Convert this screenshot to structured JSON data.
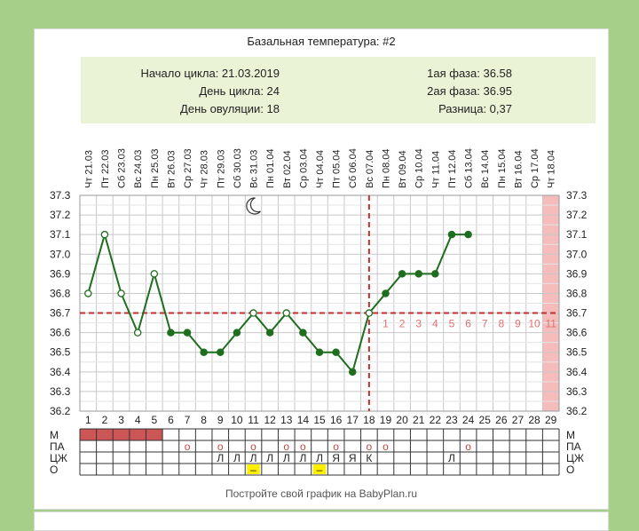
{
  "title": "Базальная температура: #2",
  "summary": {
    "cycle_start_label": "Начало цикла: 21.03.2019",
    "cycle_day_label": "День цикла: 24",
    "ovulation_day_label": "День овуляции: 18",
    "phase1_label": "1ая фаза: 36.58",
    "phase2_label": "2ая фаза: 36.95",
    "difference_label": "Разница: 0,37"
  },
  "footer": "Постройте свой график на BabyPlan.ru",
  "chart_data": {
    "type": "line",
    "title": "Базальная температура: #2",
    "ylim": [
      36.2,
      37.3
    ],
    "yticks": [
      "37.3",
      "37.2",
      "37.1",
      "37.0",
      "36.9",
      "36.8",
      "36.7",
      "36.6",
      "36.5",
      "36.4",
      "36.3",
      "36.2"
    ],
    "days": [
      1,
      2,
      3,
      4,
      5,
      6,
      7,
      8,
      9,
      10,
      11,
      12,
      13,
      14,
      15,
      16,
      17,
      18,
      19,
      20,
      21,
      22,
      23,
      24,
      25,
      26,
      27,
      28,
      29
    ],
    "dates": [
      "Чт 21.03",
      "Пт 22.03",
      "Сб 23.03",
      "Вс 24.03",
      "Пн 25.03",
      "Вт 26.03",
      "Ср 27.03",
      "Чт 28.03",
      "Пт 29.03",
      "Сб 30.03",
      "Вс 31.03",
      "Пн 01.04",
      "Вт 02.04",
      "Ср 03.04",
      "Чт 04.04",
      "Пт 05.04",
      "Сб 06.04",
      "Вс 07.04",
      "Пн 08.04",
      "Вт 09.04",
      "Ср 10.04",
      "Чт 11.04",
      "Пт 12.04",
      "Сб 13.04",
      "Вс 14.04",
      "Пн 15.04",
      "Вт 16.04",
      "Ср 17.04",
      "Чт 18.04"
    ],
    "temperatures": [
      36.8,
      37.1,
      36.8,
      36.6,
      36.9,
      36.6,
      36.6,
      36.5,
      36.5,
      36.6,
      36.7,
      36.6,
      36.7,
      36.6,
      36.5,
      36.5,
      36.4,
      36.7,
      36.8,
      36.9,
      36.9,
      36.9,
      37.1,
      37.1
    ],
    "hollow_points": [
      1,
      2,
      3,
      4,
      5,
      11,
      13,
      18
    ],
    "coverline": 36.7,
    "ovulation_day": 18,
    "luteal_day_labels": [
      "1",
      "2",
      "3",
      "4",
      "5",
      "6",
      "7",
      "8",
      "9",
      "10",
      "11"
    ],
    "highlight_day": 29,
    "moon_day": 11,
    "rows": [
      {
        "label": "М",
        "marked_days": [
          1,
          2,
          3,
          4,
          5
        ]
      },
      {
        "label": "ПА",
        "cells": {
          "7": "о",
          "9": "о",
          "11": "о",
          "13": "о",
          "14": "о",
          "16": "о",
          "18": "о",
          "19": "о",
          "24": "о"
        }
      },
      {
        "label": "ЦЖ",
        "cells": {
          "9": "Л",
          "10": "Л",
          "11": "Л",
          "12": "Л",
          "13": "Л",
          "14": "Л",
          "15": "Л",
          "16": "Я",
          "17": "Я",
          "18": "К",
          "23": "Л"
        }
      },
      {
        "label": "О",
        "cells": {
          "11": "–",
          "15": "–"
        },
        "highlight_days": [
          11,
          15
        ]
      }
    ],
    "colors": {
      "line": "#1f6e1f",
      "coverline": "#c03030",
      "luteal_label": "#e07070",
      "highlight": "#f5bcbc",
      "menstruation": "#cc5555",
      "ovulation_cell": "#ffee00",
      "pa_marker": "#cc4444"
    }
  }
}
